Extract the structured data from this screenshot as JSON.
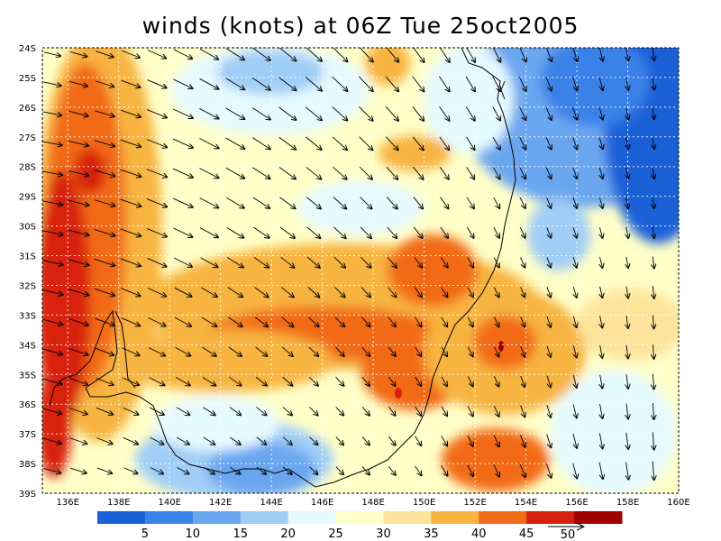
{
  "title": "winds (knots) at 06Z Tue 25oct2005",
  "map": {
    "lat_labels": [
      "24S",
      "25S",
      "26S",
      "27S",
      "28S",
      "29S",
      "30S",
      "31S",
      "32S",
      "33S",
      "34S",
      "35S",
      "36S",
      "37S",
      "38S",
      "39S"
    ],
    "lon_labels": [
      "136E",
      "138E",
      "140E",
      "142E",
      "144E",
      "146E",
      "148E",
      "150E",
      "152E",
      "154E",
      "156E",
      "158E",
      "160E"
    ],
    "lat_range": [
      -39,
      -24
    ],
    "lon_range": [
      135,
      160
    ],
    "coast_color": "#000000"
  },
  "colorbar": {
    "colors": [
      "#1a60d8",
      "#3a82e8",
      "#6aa6f0",
      "#a0cdf6",
      "#e6fbff",
      "#ffffc8",
      "#fde49a",
      "#f7b441",
      "#f26b16",
      "#d82010",
      "#a00000"
    ],
    "labels": [
      "5",
      "10",
      "15",
      "20",
      "25",
      "30",
      "35",
      "40",
      "45"
    ],
    "reference_vector": "50"
  }
}
